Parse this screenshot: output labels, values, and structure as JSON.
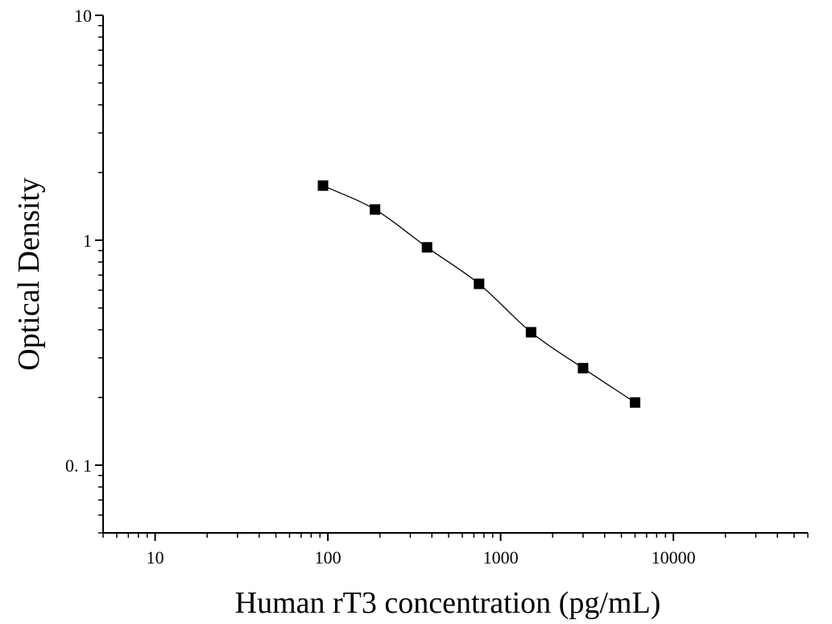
{
  "chart_data": {
    "type": "scatter",
    "title": "",
    "xlabel": "Human rT3 concentration (pg/mL)",
    "ylabel": "Optical Density",
    "x_scale": "log",
    "y_scale": "log",
    "xlim": [
      5,
      60000
    ],
    "ylim": [
      0.05,
      10
    ],
    "x_ticks": [
      {
        "value": 10,
        "label": "10"
      },
      {
        "value": 100,
        "label": "100"
      },
      {
        "value": 1000,
        "label": "1000"
      },
      {
        "value": 10000,
        "label": "10000"
      }
    ],
    "y_ticks": [
      {
        "value": 0.1,
        "label": "0. 1"
      },
      {
        "value": 1,
        "label": "1"
      },
      {
        "value": 10,
        "label": "10"
      }
    ],
    "grid": false,
    "legend": "none",
    "marker": "square",
    "fit_curve": true,
    "series": [
      {
        "x": [
          93.75,
          187.5,
          375,
          750,
          1500,
          3000,
          6000
        ],
        "y": [
          1.75,
          1.37,
          0.93,
          0.64,
          0.39,
          0.27,
          0.19
        ]
      }
    ],
    "colors": {
      "marker": "#000000",
      "line": "#000000",
      "axis": "#000000"
    }
  }
}
